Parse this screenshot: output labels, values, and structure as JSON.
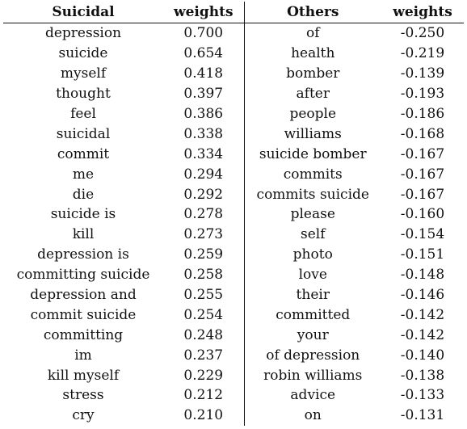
{
  "table": {
    "headers": [
      "Suicidal",
      "weights",
      "Others",
      "weights"
    ],
    "rows": [
      [
        "depression",
        "0.700",
        "of",
        "-0.250"
      ],
      [
        "suicide",
        "0.654",
        "health",
        "-0.219"
      ],
      [
        "myself",
        "0.418",
        "bomber",
        "-0.139"
      ],
      [
        "thought",
        "0.397",
        "after",
        "-0.193"
      ],
      [
        "feel",
        "0.386",
        "people",
        "-0.186"
      ],
      [
        "suicidal",
        "0.338",
        "williams",
        "-0.168"
      ],
      [
        "commit",
        "0.334",
        "suicide bomber",
        "-0.167"
      ],
      [
        "me",
        "0.294",
        "commits",
        "-0.167"
      ],
      [
        "die",
        "0.292",
        "commits suicide",
        "-0.167"
      ],
      [
        "suicide is",
        "0.278",
        "please",
        "-0.160"
      ],
      [
        "kill",
        "0.273",
        "self",
        "-0.154"
      ],
      [
        "depression is",
        "0.259",
        "photo",
        "-0.151"
      ],
      [
        "committing suicide",
        "0.258",
        "love",
        "-0.148"
      ],
      [
        "depression and",
        "0.255",
        "their",
        "-0.146"
      ],
      [
        "commit suicide",
        "0.254",
        "committed",
        "-0.142"
      ],
      [
        "committing",
        "0.248",
        "your",
        "-0.142"
      ],
      [
        "im",
        "0.237",
        "of depression",
        "-0.140"
      ],
      [
        "kill myself",
        "0.229",
        "robin williams",
        "-0.138"
      ],
      [
        "stress",
        "0.212",
        "advice",
        "-0.133"
      ],
      [
        "cry",
        "0.210",
        "on",
        "-0.131"
      ]
    ]
  }
}
